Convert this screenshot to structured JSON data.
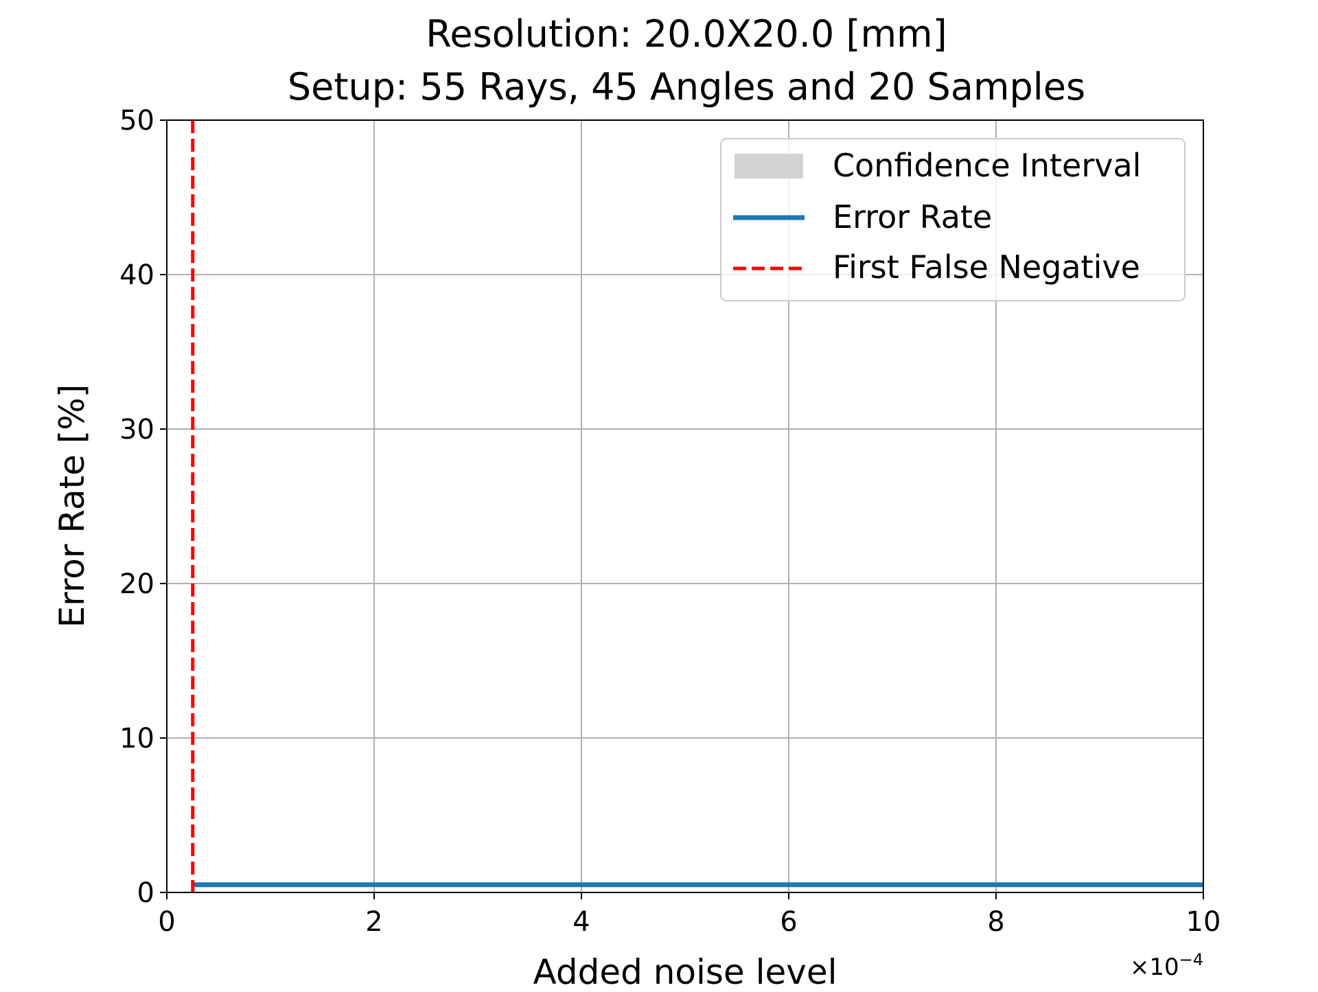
{
  "chart_data": {
    "type": "line",
    "title_lines": [
      "Resolution: 20.0X20.0 [mm]",
      "Setup: 55 Rays, 45 Angles and 20 Samples"
    ],
    "xlabel": "Added noise level",
    "ylabel": "Error Rate [%]",
    "x_offset_text": "×10",
    "x_offset_exponent": "−4",
    "x_scale": 0.0001,
    "xlim": [
      0,
      10
    ],
    "ylim": [
      0,
      50
    ],
    "x_ticks": [
      0,
      2,
      4,
      6,
      8,
      10
    ],
    "y_ticks": [
      0,
      10,
      20,
      30,
      40,
      50
    ],
    "grid": true,
    "legend_position": "upper right",
    "legend": [
      "Confidence Interval",
      "Error Rate",
      "First False Negative"
    ],
    "series": [
      {
        "name": "Error Rate",
        "x": [
          0.25,
          10
        ],
        "y": [
          0.5,
          0.5
        ]
      }
    ],
    "confidence_interval": {
      "name": "Confidence Interval",
      "x": [
        0.25,
        10
      ],
      "lower": [
        0.5,
        0.5
      ],
      "upper": [
        0.5,
        0.5
      ]
    },
    "vertical_line": {
      "name": "First False Negative",
      "x": 0.25
    },
    "colors": {
      "error_rate": "#1f77b4",
      "first_false_negative": "#ff0000",
      "confidence_interval": "#d3d3d3",
      "grid": "#b0b0b0"
    }
  }
}
